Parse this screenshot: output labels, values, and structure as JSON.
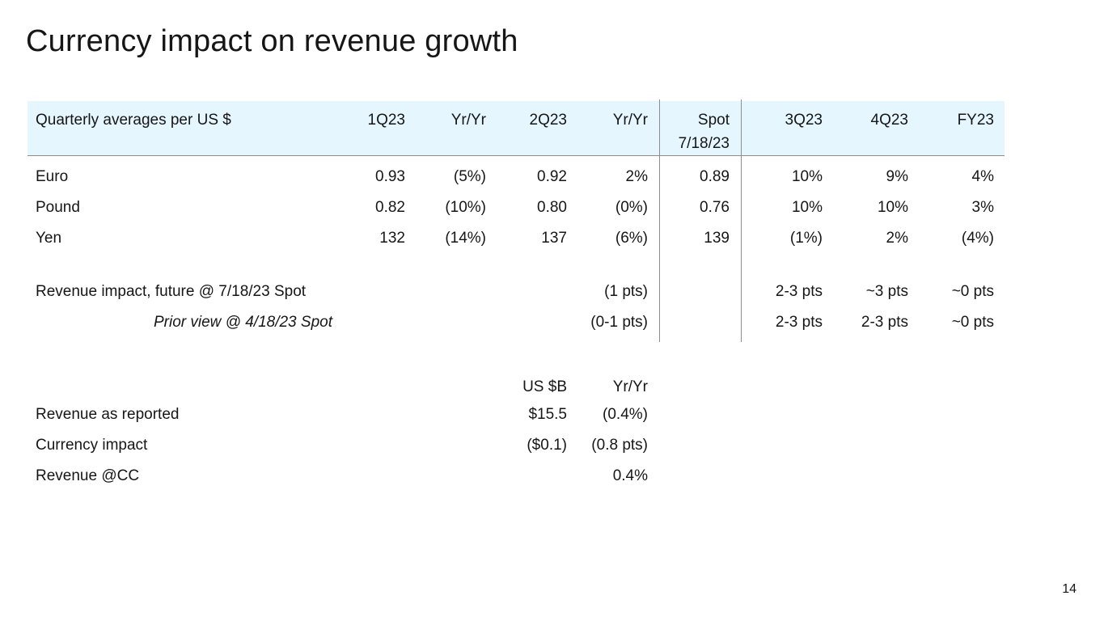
{
  "title": "Currency impact on revenue growth",
  "page_number": "14",
  "fx_table": {
    "headers": [
      "Quarterly averages per US $",
      "1Q23",
      "Yr/Yr",
      "2Q23",
      "Yr/Yr",
      "Spot",
      "7/18/23",
      "3Q23",
      "4Q23",
      "FY23"
    ],
    "rows": [
      {
        "label": "Euro",
        "values": [
          "0.93",
          "(5%)",
          "0.92",
          "2%",
          "0.89",
          "10%",
          "9%",
          "4%"
        ]
      },
      {
        "label": "Pound",
        "values": [
          "0.82",
          "(10%)",
          "0.80",
          "(0%)",
          "0.76",
          "10%",
          "10%",
          "3%"
        ]
      },
      {
        "label": "Yen",
        "values": [
          "132",
          "(14%)",
          "137",
          "(6%)",
          "139",
          "(1%)",
          "2%",
          "(4%)"
        ]
      }
    ],
    "impact_rows": [
      {
        "label": "Revenue impact, future @ 7/18/23 Spot",
        "q2": "(1 pts)",
        "q3": "2-3 pts",
        "q4": "~3 pts",
        "fy": "~0 pts"
      },
      {
        "label": "Prior view @ 4/18/23 Spot",
        "q2": "(0-1 pts)",
        "q3": "2-3 pts",
        "q4": "2-3 pts",
        "fy": "~0 pts"
      }
    ]
  },
  "revenue_table": {
    "headers": [
      "US $B",
      "Yr/Yr"
    ],
    "rows": [
      {
        "label": "Revenue as reported",
        "usd": "$15.5",
        "yoy": "(0.4%)"
      },
      {
        "label": "Currency impact",
        "usd": "($0.1)",
        "yoy": "(0.8 pts)"
      },
      {
        "label": "Revenue @CC",
        "usd": "",
        "yoy": "0.4%"
      }
    ]
  }
}
